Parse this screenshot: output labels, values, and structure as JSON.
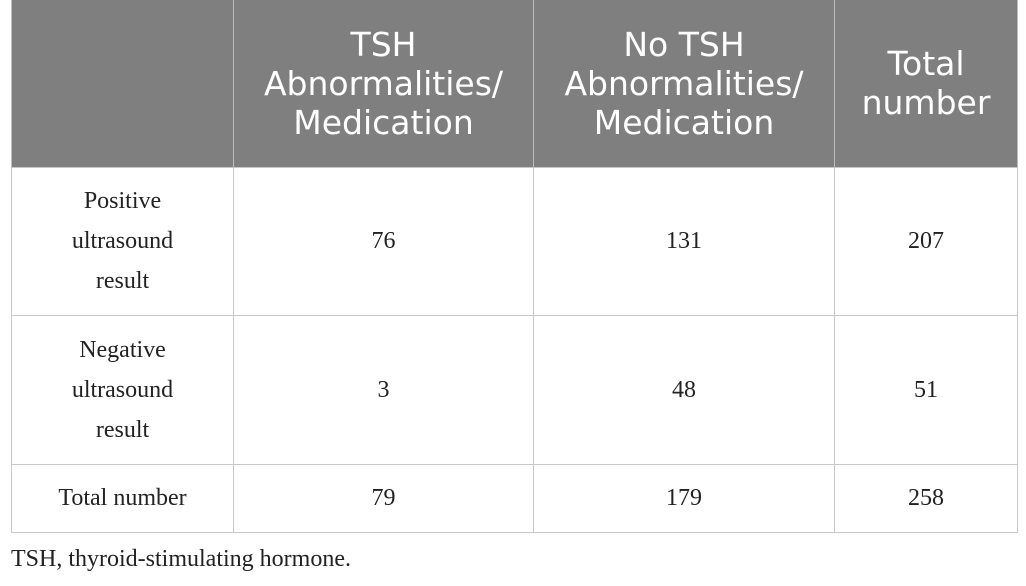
{
  "table": {
    "headers": [
      "",
      "TSH Abnormalities/ Medication",
      "No TSH Abnormalities/ Medication",
      "Total number"
    ],
    "header_lines": [
      [],
      [
        "TSH",
        "Abnormalities/",
        "Medication"
      ],
      [
        "No TSH",
        "Abnormalities/",
        "Medication"
      ],
      [
        "Total",
        "number"
      ]
    ],
    "rows": [
      {
        "label_lines": [
          "Positive",
          "ultrasound",
          "result"
        ],
        "values": [
          "76",
          "131",
          "207"
        ]
      },
      {
        "label_lines": [
          "Negative",
          "ultrasound",
          "result"
        ],
        "values": [
          "3",
          "48",
          "51"
        ]
      },
      {
        "label_lines": [
          "Total number"
        ],
        "values": [
          "79",
          "179",
          "258"
        ]
      }
    ]
  },
  "footnote": "TSH, thyroid-stimulating hormone.",
  "colors": {
    "header_bg": "#7f7f7f",
    "header_text": "#ffffff",
    "body_text": "#222222",
    "grid": "#c8c8c8"
  }
}
